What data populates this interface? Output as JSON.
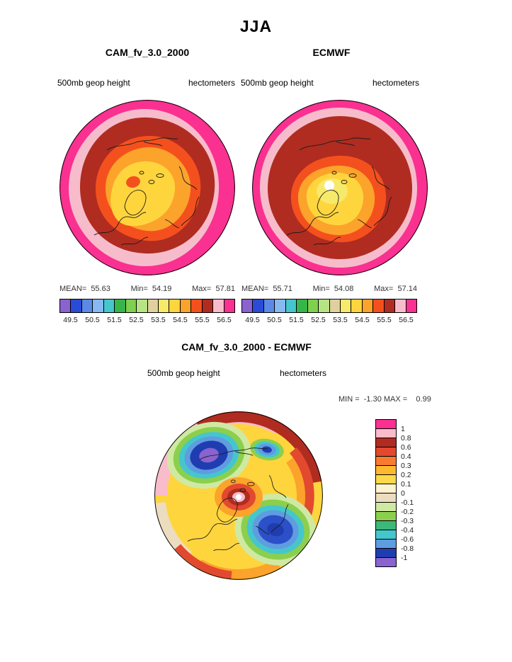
{
  "page_title": "JJA",
  "panels": {
    "cam": {
      "title": "CAM_fv_3.0_2000",
      "field_label": "500mb geop height",
      "units_label": "hectometers",
      "stats": {
        "mean": "MEAN=  55.63",
        "min": "Min=  54.19",
        "max": "Max=  57.81"
      }
    },
    "ecmwf": {
      "title": "ECMWF",
      "field_label": "500mb geop height",
      "units_label": "hectometers",
      "stats": {
        "mean": "MEAN=  55.71",
        "min": "Min=  54.08",
        "max": "Max=  57.14"
      }
    },
    "diff": {
      "title": "CAM_fv_3.0_2000 - ECMWF",
      "field_label": "500mb geop height",
      "units_label": "hectometers",
      "minmax": "MIN =  -1.30 MAX =    0.99"
    }
  },
  "colorbar": {
    "colors": [
      "#8a63cf",
      "#2a4bd7",
      "#5b8ae6",
      "#86b9ef",
      "#45c6cd",
      "#37b54a",
      "#7ed04f",
      "#b6e383",
      "#e0d0a0",
      "#f7e96a",
      "#ffd53e",
      "#fba32b",
      "#f4501e",
      "#b02c20",
      "#f7bccb",
      "#fa3190"
    ],
    "tick_labels": [
      "49.5",
      "50.5",
      "51.5",
      "52.5",
      "53.5",
      "54.5",
      "55.5",
      "56.5"
    ]
  },
  "diff_legend": {
    "colors": [
      "#fa3190",
      "#f9bcca",
      "#b02c20",
      "#e2492f",
      "#f97b2f",
      "#fdb92e",
      "#ffd94a",
      "#fdf3cf",
      "#ecdcc0",
      "#cfe9a2",
      "#8ccf4d",
      "#3cb878",
      "#45c6cd",
      "#5f9ce0",
      "#1f3db0",
      "#8a63cf"
    ],
    "labels": [
      "1",
      "0.8",
      "0.6",
      "0.4",
      "0.3",
      "0.2",
      "0.1",
      "0",
      "-0.1",
      "-0.2",
      "-0.3",
      "-0.4",
      "-0.6",
      "-0.8",
      "-1"
    ]
  },
  "chart_data": [
    {
      "type": "heatmap",
      "subtype": "filled-contour-polar-map",
      "season": "JJA",
      "title": "CAM_fv_3.0_2000",
      "variable": "500mb geop height",
      "units": "hectometers",
      "projection": "north polar stereographic",
      "stats": {
        "mean": 55.63,
        "min": 54.19,
        "max": 57.81
      },
      "contour_ticks": [
        49.5,
        50.5,
        51.5,
        52.5,
        53.5,
        54.5,
        55.5,
        56.5
      ],
      "contour_interval": 0.5,
      "palette": [
        "#8a63cf",
        "#2a4bd7",
        "#5b8ae6",
        "#86b9ef",
        "#45c6cd",
        "#37b54a",
        "#7ed04f",
        "#b6e383",
        "#e0d0a0",
        "#f7e96a",
        "#ffd53e",
        "#fba32b",
        "#f4501e",
        "#b02c20",
        "#f7bccb",
        "#fa3190"
      ],
      "legend_position": "bottom",
      "pattern": "low (yellow ~54) geopotential heights over the pole, increasing to >56.5 (magenta) at the map edge"
    },
    {
      "type": "heatmap",
      "subtype": "filled-contour-polar-map",
      "season": "JJA",
      "title": "ECMWF",
      "variable": "500mb geop height",
      "units": "hectometers",
      "projection": "north polar stereographic",
      "stats": {
        "mean": 55.71,
        "min": 54.08,
        "max": 57.14
      },
      "contour_ticks": [
        49.5,
        50.5,
        51.5,
        52.5,
        53.5,
        54.5,
        55.5,
        56.5
      ],
      "contour_interval": 0.5,
      "palette": [
        "#8a63cf",
        "#2a4bd7",
        "#5b8ae6",
        "#86b9ef",
        "#45c6cd",
        "#37b54a",
        "#7ed04f",
        "#b6e383",
        "#e0d0a0",
        "#f7e96a",
        "#ffd53e",
        "#fba32b",
        "#f4501e",
        "#b02c20",
        "#f7bccb",
        "#fa3190"
      ],
      "legend_position": "bottom",
      "pattern": "minimum (white/yellow ~54) just off the pole, broad dark-red band (56-56.5) in mid-latitudes, magenta >56.5 at edge"
    },
    {
      "type": "heatmap",
      "subtype": "filled-contour-polar-map",
      "season": "JJA",
      "title": "CAM_fv_3.0_2000 - ECMWF",
      "variable": "500mb geop height",
      "units": "hectometers",
      "projection": "north polar stereographic",
      "stats": {
        "min": -1.3,
        "max": 0.99
      },
      "contour_levels": [
        1,
        0.8,
        0.6,
        0.4,
        0.3,
        0.2,
        0.1,
        0,
        -0.1,
        -0.2,
        -0.3,
        -0.4,
        -0.6,
        -0.8,
        -1
      ],
      "palette": [
        "#fa3190",
        "#f9bcca",
        "#b02c20",
        "#e2492f",
        "#f97b2f",
        "#fdb92e",
        "#ffd94a",
        "#fdf3cf",
        "#ecdcc0",
        "#cfe9a2",
        "#8ccf4d",
        "#3cb878",
        "#45c6cd",
        "#5f9ce0",
        "#1f3db0",
        "#8a63cf"
      ],
      "legend_position": "right",
      "pattern": "positive bias (pink/red, up to ~+1) around map rim and near pole; strong negative centers (blue/purple, to -1.3) over high-latitude sectors left and lower-right of pole"
    }
  ]
}
